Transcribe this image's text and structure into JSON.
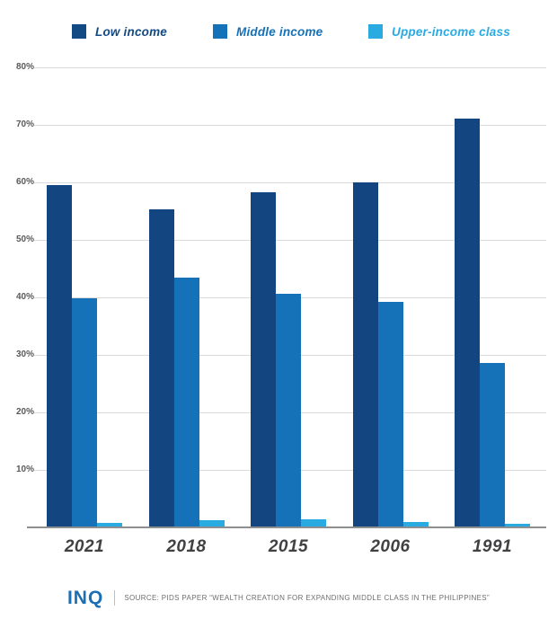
{
  "legend": {
    "items": [
      {
        "label": "Low income",
        "color": "#134a83"
      },
      {
        "label": "Middle income",
        "color": "#1572b8"
      },
      {
        "label": "Upper-income class",
        "color": "#29abe2"
      }
    ]
  },
  "chart_data": {
    "type": "bar",
    "categories": [
      "2021",
      "2018",
      "2015",
      "2006",
      "1991"
    ],
    "series": [
      {
        "name": "Low income",
        "color": "#134580",
        "values": [
          59.3,
          55.1,
          58.2,
          59.9,
          70.9
        ]
      },
      {
        "name": "Middle income",
        "color": "#1572b8",
        "values": [
          39.7,
          43.3,
          40.5,
          39.0,
          28.4
        ]
      },
      {
        "name": "Upper-income class",
        "color": "#29abe2",
        "values": [
          0.7,
          1.1,
          1.2,
          0.8,
          0.4
        ]
      }
    ],
    "title": "",
    "xlabel": "",
    "ylabel": "",
    "ylim": [
      0,
      80
    ],
    "y_ticks": [
      "10%",
      "20%",
      "30%",
      "40%",
      "50%",
      "60%",
      "70%",
      "80%"
    ],
    "grid": true,
    "legend_position": "top"
  },
  "footer": {
    "logo": "INQ",
    "source": "SOURCE: PIDS PAPER “WEALTH CREATION FOR EXPANDING MIDDLE CLASS IN THE PHILIPPINES”"
  }
}
